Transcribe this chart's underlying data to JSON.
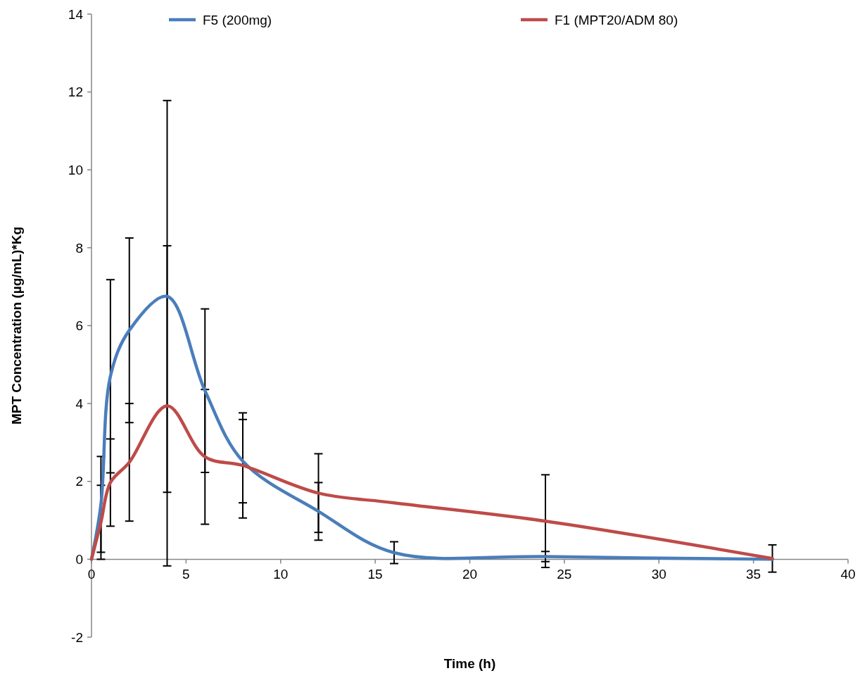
{
  "chart_data": {
    "type": "line",
    "xlabel": "Time (h)",
    "ylabel": "MPT Concentration (µg/mL)*Kg",
    "x": [
      0,
      0.5,
      1,
      2,
      4,
      6,
      8,
      12,
      16,
      24,
      36
    ],
    "series": [
      {
        "name": "F5 (200mg)",
        "color": "#4a7ebb",
        "values": [
          0,
          1.41,
          4.7,
          5.88,
          6.75,
          4.33,
          2.52,
          1.23,
          0.17,
          0.07,
          0
        ],
        "errors": [
          null,
          1.23,
          2.48,
          2.37,
          5.03,
          2.1,
          1.07,
          0.74,
          0.28,
          0.13,
          null
        ]
      },
      {
        "name": "F1 (MPT20/ADM 80)",
        "color": "#be4b48",
        "values": [
          0,
          0.95,
          1.97,
          2.49,
          3.94,
          2.63,
          2.41,
          1.7,
          1.45,
          0.98,
          0.02
        ],
        "errors": [
          null,
          0.95,
          1.12,
          1.51,
          4.11,
          1.73,
          1.35,
          1.01,
          null,
          1.19,
          0.35
        ]
      }
    ],
    "xlim": [
      0,
      40
    ],
    "xticks": [
      0,
      5,
      10,
      15,
      20,
      25,
      30,
      35,
      40
    ],
    "ylim": [
      -2,
      14
    ],
    "yticks": [
      -2,
      0,
      2,
      4,
      6,
      8,
      10,
      12,
      14
    ],
    "grid": false,
    "legend": "top",
    "marker": "none",
    "line_style": "solid"
  }
}
